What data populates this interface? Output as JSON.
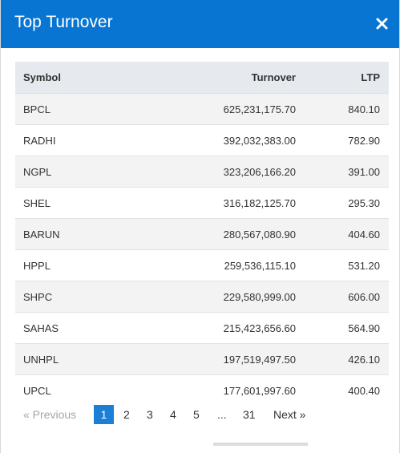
{
  "modal": {
    "title": "Top Turnover",
    "close_icon": "close-icon",
    "header_color": "#0875d3"
  },
  "table": {
    "columns": [
      "Symbol",
      "Turnover",
      "LTP"
    ],
    "rows": [
      {
        "symbol": "BPCL",
        "turnover": "625,231,175.70",
        "ltp": "840.10"
      },
      {
        "symbol": "RADHI",
        "turnover": "392,032,383.00",
        "ltp": "782.90"
      },
      {
        "symbol": "NGPL",
        "turnover": "323,206,166.20",
        "ltp": "391.00"
      },
      {
        "symbol": "SHEL",
        "turnover": "316,182,125.70",
        "ltp": "295.30"
      },
      {
        "symbol": "BARUN",
        "turnover": "280,567,080.90",
        "ltp": "404.60"
      },
      {
        "symbol": "HPPL",
        "turnover": "259,536,115.10",
        "ltp": "531.20"
      },
      {
        "symbol": "SHPC",
        "turnover": "229,580,999.00",
        "ltp": "606.00"
      },
      {
        "symbol": "SAHAS",
        "turnover": "215,423,656.60",
        "ltp": "564.90"
      },
      {
        "symbol": "UNHPL",
        "turnover": "197,519,497.50",
        "ltp": "426.10"
      },
      {
        "symbol": "UPCL",
        "turnover": "177,601,997.60",
        "ltp": "400.40"
      }
    ]
  },
  "pagination": {
    "previous": "«   Previous",
    "pages": [
      "1",
      "2",
      "3",
      "4",
      "5"
    ],
    "ellipsis": "...",
    "last": "31",
    "next": "Next   »",
    "current": "1",
    "active_color": "#1c7fd6"
  }
}
